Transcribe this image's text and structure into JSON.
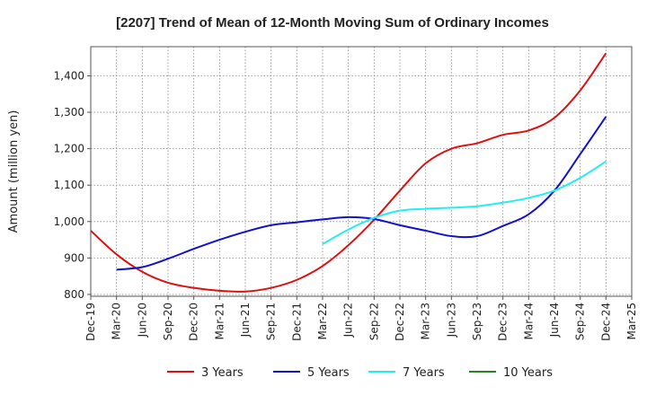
{
  "chart_data": {
    "type": "line",
    "title": "[2207]  Trend of Mean of 12-Month Moving Sum of Ordinary Incomes",
    "xlabel": "",
    "ylabel": "Amount (million yen)",
    "categories": [
      "Dec-19",
      "Mar-20",
      "Jun-20",
      "Sep-20",
      "Dec-20",
      "Mar-21",
      "Jun-21",
      "Sep-21",
      "Dec-21",
      "Mar-22",
      "Jun-22",
      "Sep-22",
      "Dec-22",
      "Mar-23",
      "Jun-23",
      "Sep-23",
      "Dec-23",
      "Mar-24",
      "Jun-24",
      "Sep-24",
      "Dec-24",
      "Mar-25"
    ],
    "yticks": [
      800,
      900,
      1000,
      1100,
      1200,
      1300,
      1400
    ],
    "ytick_labels": [
      "800",
      "900",
      "1,000",
      "1,100",
      "1,200",
      "1,300",
      "1,400"
    ],
    "ylim": [
      795,
      1480
    ],
    "grid": true,
    "legend_position": "bottom",
    "series": [
      {
        "name": "3 Years",
        "color": "#dd1111",
        "values": [
          975,
          910,
          862,
          832,
          818,
          810,
          808,
          818,
          840,
          878,
          935,
          1005,
          1085,
          1160,
          1200,
          1215,
          1238,
          1250,
          1285,
          1360,
          1462,
          null
        ]
      },
      {
        "name": "5 Years",
        "color": "#1111cc",
        "values": [
          null,
          868,
          875,
          898,
          925,
          950,
          972,
          990,
          998,
          1006,
          1012,
          1007,
          990,
          975,
          960,
          960,
          988,
          1020,
          1085,
          1185,
          1288,
          null
        ]
      },
      {
        "name": "7 Years",
        "color": "#22eeee",
        "values": [
          null,
          null,
          null,
          null,
          null,
          null,
          null,
          null,
          null,
          938,
          978,
          1010,
          1030,
          1035,
          1038,
          1042,
          1052,
          1065,
          1085,
          1120,
          1165,
          null
        ]
      },
      {
        "name": "10 Years",
        "color": "#228822",
        "values": [
          null,
          null,
          null,
          null,
          null,
          null,
          null,
          null,
          null,
          null,
          null,
          null,
          null,
          null,
          null,
          null,
          null,
          null,
          null,
          null,
          null,
          null
        ]
      }
    ]
  }
}
